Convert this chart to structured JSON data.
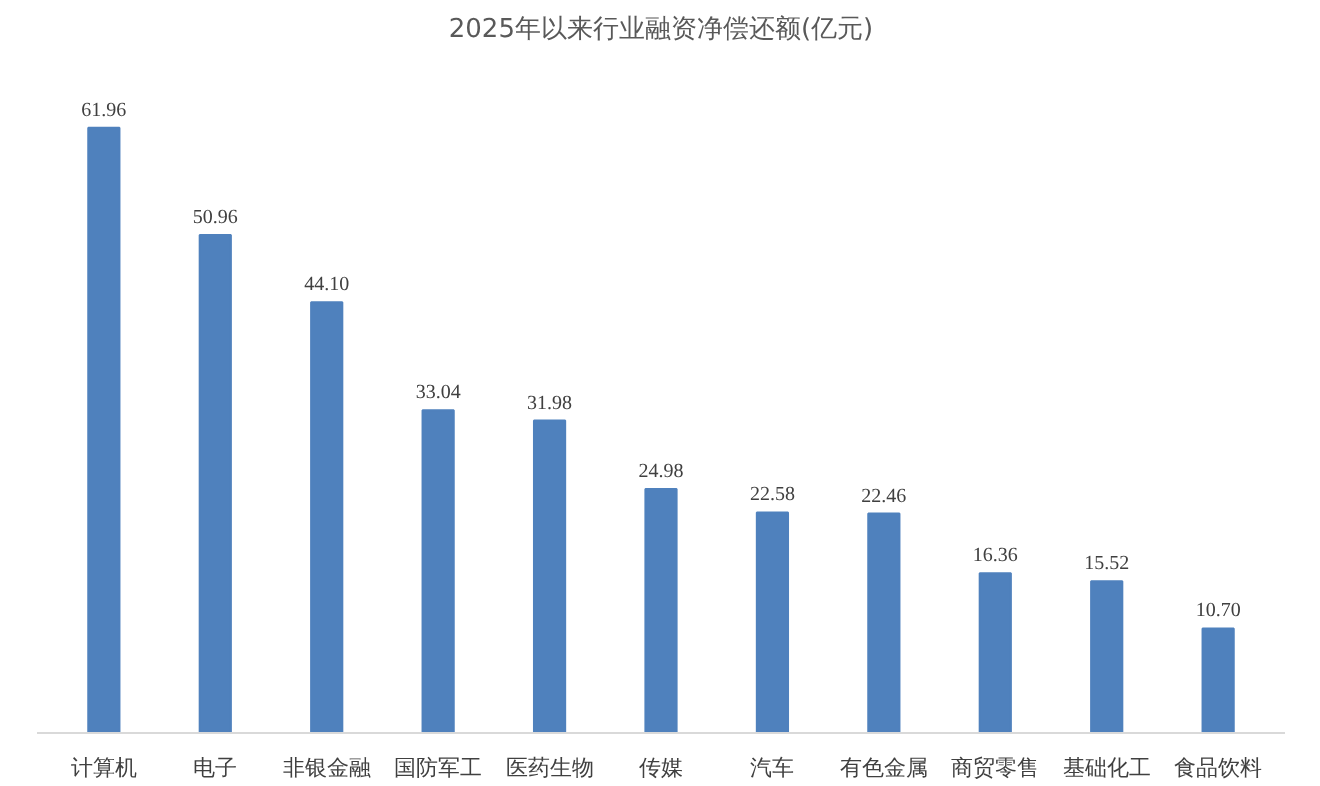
{
  "chart_data": {
    "type": "bar",
    "title": "2025年以来行业融资净偿还额(亿元)",
    "categories": [
      "计算机",
      "电子",
      "非银金融",
      "国防军工",
      "医药生物",
      "传媒",
      "汽车",
      "有色金属",
      "商贸零售",
      "基础化工",
      "食品饮料"
    ],
    "values": [
      61.96,
      50.96,
      44.1,
      33.04,
      31.98,
      24.98,
      22.58,
      22.46,
      16.36,
      15.52,
      10.7
    ],
    "value_labels": [
      "61.96",
      "50.96",
      "44.10",
      "33.04",
      "31.98",
      "24.98",
      "22.58",
      "22.46",
      "16.36",
      "15.52",
      "10.70"
    ],
    "color": "#4f81bd",
    "grid": false
  }
}
